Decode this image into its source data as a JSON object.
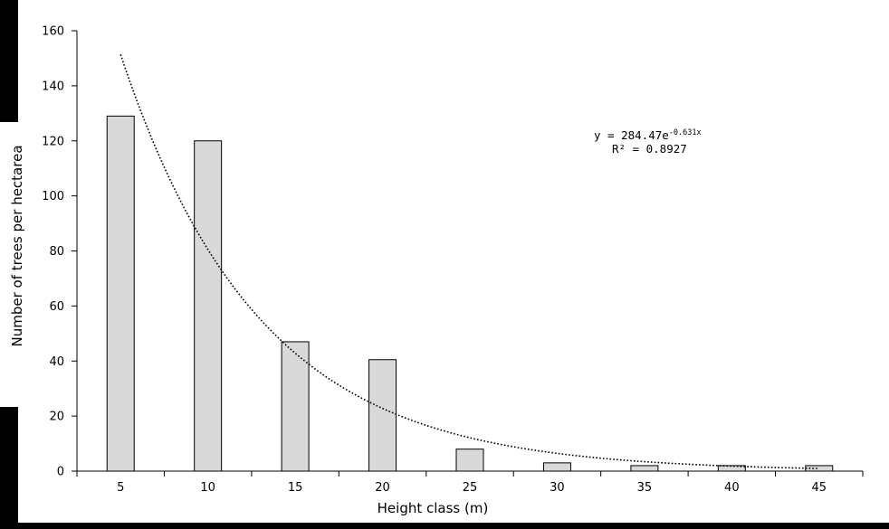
{
  "chart_data": {
    "type": "bar",
    "title": "",
    "xlabel": "Height class (m)",
    "ylabel": "Number of trees per hectarea",
    "categories": [
      "5",
      "10",
      "15",
      "20",
      "25",
      "30",
      "35",
      "40",
      "45"
    ],
    "values": [
      129,
      120,
      47,
      40.5,
      8,
      3,
      2,
      2,
      2
    ],
    "ylim": [
      0,
      160
    ],
    "yticks": [
      "0",
      "20",
      "40",
      "60",
      "80",
      "100",
      "120",
      "140",
      "160"
    ],
    "grid": false,
    "legend": "none",
    "bar_color": "#d9d9d9",
    "bar_edge_color": "#000000",
    "trendline": {
      "type": "exponential",
      "a": 284.47,
      "b": -0.631,
      "x_start_category_index": 0,
      "x_end_category_index": 8,
      "style": "dotted",
      "equation_prefix": "y = 284.47e",
      "equation_exponent": "-0.631x",
      "r_squared_label": "R² = 0.8927"
    }
  }
}
